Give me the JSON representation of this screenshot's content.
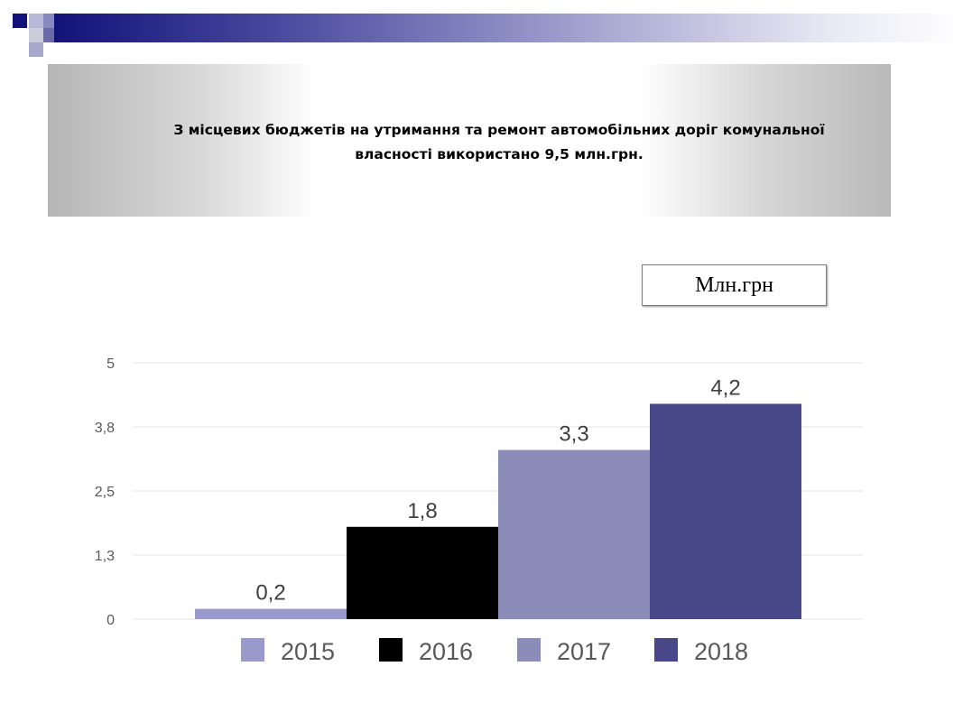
{
  "banner": {
    "title_line1": "З місцевих  бюджетів на утримання та ремонт автомобільних доріг комунальної",
    "title_line2": "власності  використано 9,5 млн.грн."
  },
  "unit_label": "Млн.грн",
  "chart_data": {
    "type": "bar",
    "categories": [
      "2015",
      "2016",
      "2017",
      "2018"
    ],
    "values": [
      0.2,
      1.8,
      3.3,
      4.2
    ],
    "value_labels": [
      "0,2",
      "1,8",
      "3,3",
      "4,2"
    ],
    "colors": [
      "#9999cc",
      "#000000",
      "#8c8cb9",
      "#484888"
    ],
    "ylim": [
      0,
      5
    ],
    "yticks": [
      0,
      1.25,
      2.5,
      3.75,
      5
    ],
    "ytick_labels": [
      "0",
      "1,3",
      "2,5",
      "3,8",
      "5"
    ],
    "legend": [
      "2015",
      "2016",
      "2017",
      "2018"
    ],
    "legend_position": "bottom",
    "grid": true,
    "gridline_color": "#e6e6e6",
    "tick_color": "#595959"
  }
}
